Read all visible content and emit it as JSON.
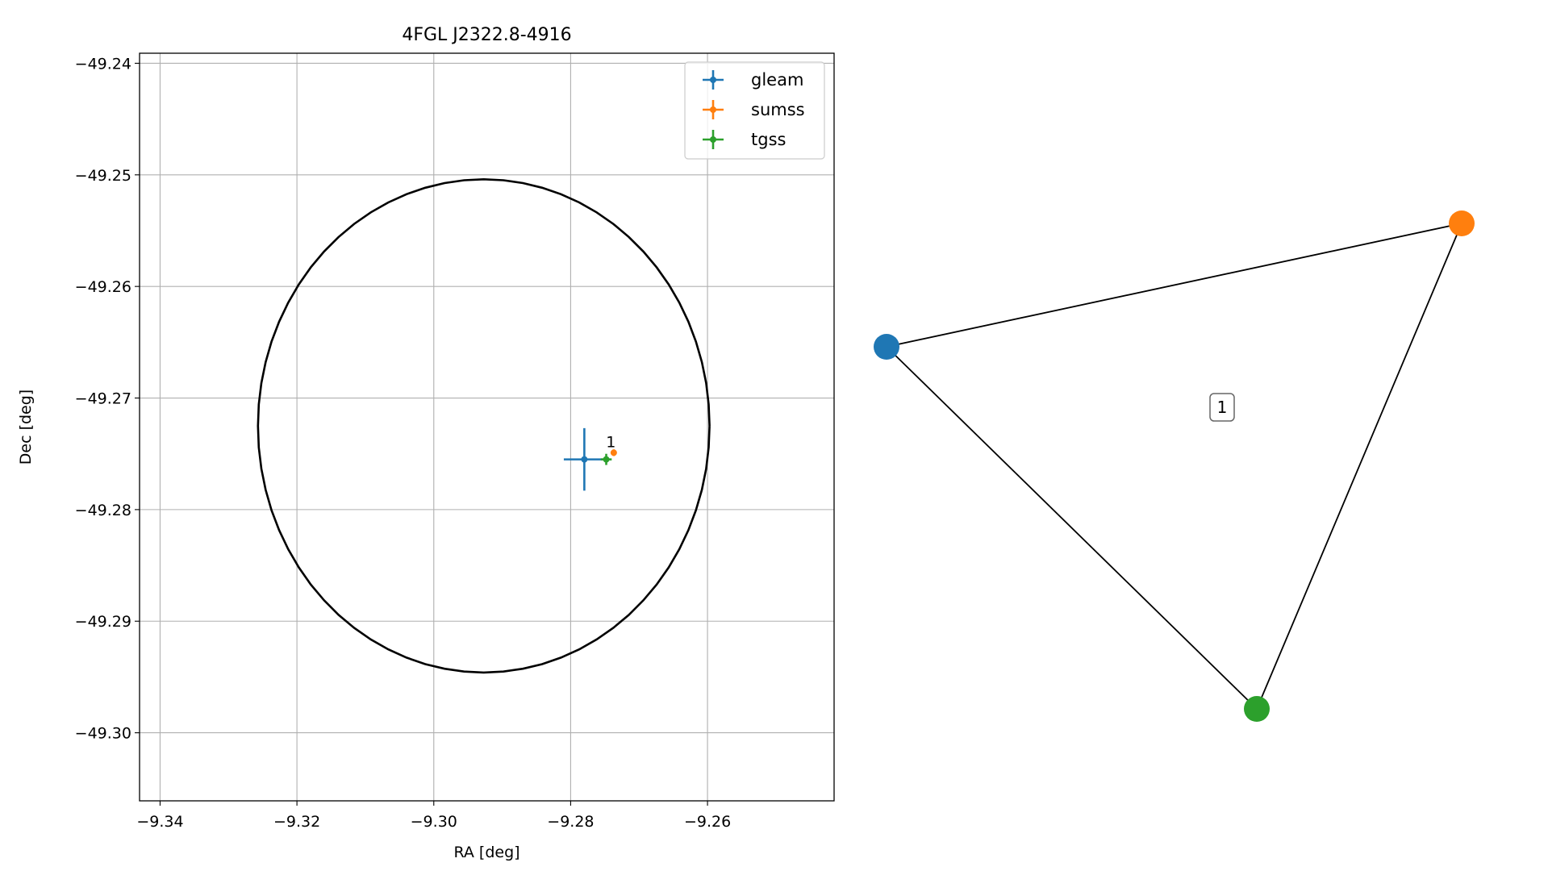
{
  "chart_data": [
    {
      "type": "scatter",
      "title": "4FGL J2322.8-4916",
      "xlabel": "RA [deg]",
      "ylabel": "Dec [deg]",
      "xlim": [
        -9.343,
        -9.2415
      ],
      "ylim": [
        -49.3061,
        -49.2391
      ],
      "xticks": [
        -9.34,
        -9.32,
        -9.3,
        -9.28,
        -9.26
      ],
      "yticks": [
        -49.24,
        -49.25,
        -49.26,
        -49.27,
        -49.28,
        -49.29,
        -49.3
      ],
      "xtick_labels": [
        "−9.34",
        "−9.32",
        "−9.30",
        "−9.28",
        "−9.26"
      ],
      "ytick_labels": [
        "−49.24",
        "−49.25",
        "−49.26",
        "−49.27",
        "−49.28",
        "−49.29",
        "−49.30"
      ],
      "grid": true,
      "legend": "top-right",
      "ellipse": {
        "center_ra": -9.2927,
        "center_dec": -49.2725,
        "semi_ra": 0.033,
        "semi_dec": 0.0221,
        "color": "#000000"
      },
      "series": [
        {
          "name": "gleam",
          "color": "#1f77b4",
          "x": -9.278,
          "y": -49.2755,
          "xerr": 0.003,
          "yerr": 0.0028
        },
        {
          "name": "sumss",
          "color": "#ff7f0e",
          "x": -9.2737,
          "y": -49.2749,
          "xerr": 0.0003,
          "yerr": 0.0003
        },
        {
          "name": "tgss",
          "color": "#2ca02c",
          "x": -9.2748,
          "y": -49.2755,
          "xerr": 0.0008,
          "yerr": 0.0005
        }
      ],
      "annotations": [
        {
          "text": "1",
          "x": -9.274,
          "y": -49.2742
        }
      ]
    },
    {
      "type": "network",
      "nodes": [
        {
          "id": "gleam",
          "color": "#1f77b4"
        },
        {
          "id": "sumss",
          "color": "#ff7f0e"
        },
        {
          "id": "tgss",
          "color": "#2ca02c"
        }
      ],
      "edges": [
        [
          "gleam",
          "sumss"
        ],
        [
          "sumss",
          "tgss"
        ],
        [
          "tgss",
          "gleam"
        ]
      ],
      "label": "1"
    }
  ]
}
